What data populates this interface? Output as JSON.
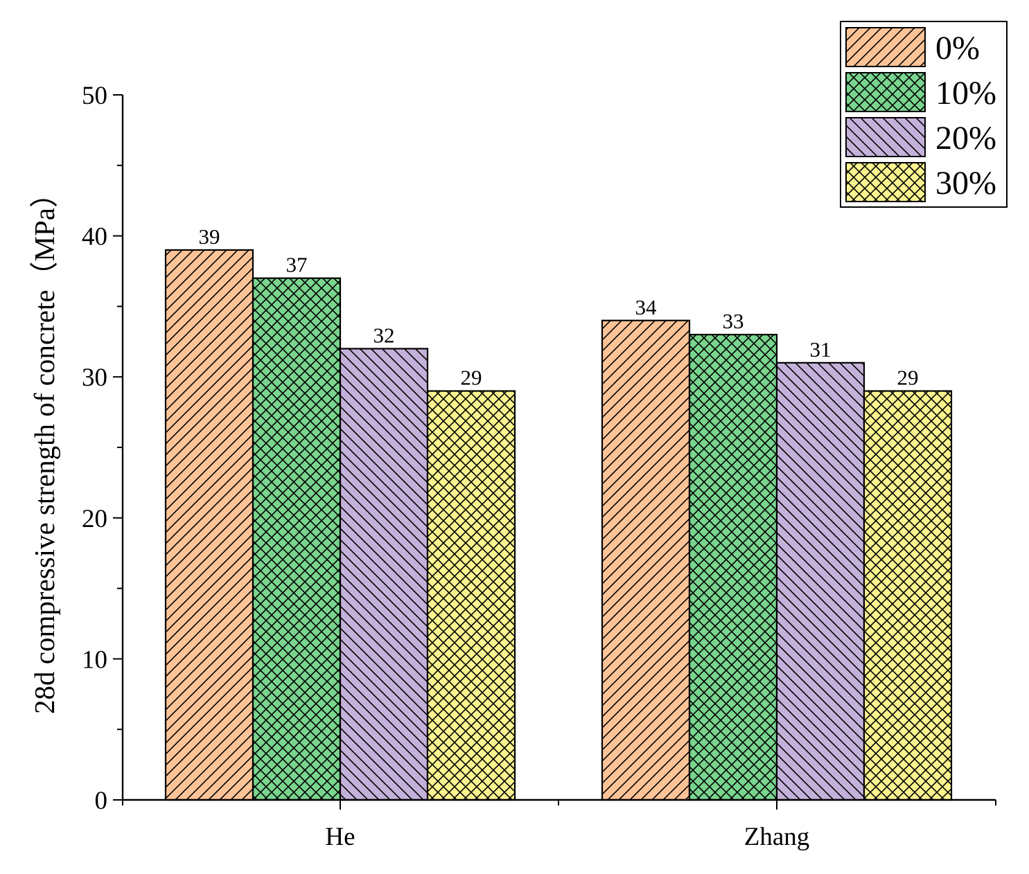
{
  "chart_data": {
    "type": "bar",
    "title": "",
    "xlabel": "",
    "ylabel": "28d compressive strength of concrete（MPa）",
    "categories": [
      "He",
      "Zhang"
    ],
    "series": [
      {
        "name": "0%",
        "values": [
          39,
          34
        ],
        "color": "#FDC397",
        "pattern": "diag-up"
      },
      {
        "name": "10%",
        "values": [
          37,
          33
        ],
        "color": "#79D48E",
        "pattern": "crosshatch"
      },
      {
        "name": "20%",
        "values": [
          32,
          31
        ],
        "color": "#C4B1DA",
        "pattern": "diag-down"
      },
      {
        "name": "30%",
        "values": [
          29,
          29
        ],
        "color": "#FAF38F",
        "pattern": "crosshatch"
      }
    ],
    "ylim": [
      0,
      50
    ],
    "yticks": [
      0,
      10,
      20,
      30,
      40,
      50
    ],
    "grid": false,
    "legend_position": "top-right",
    "data_labels": true
  }
}
